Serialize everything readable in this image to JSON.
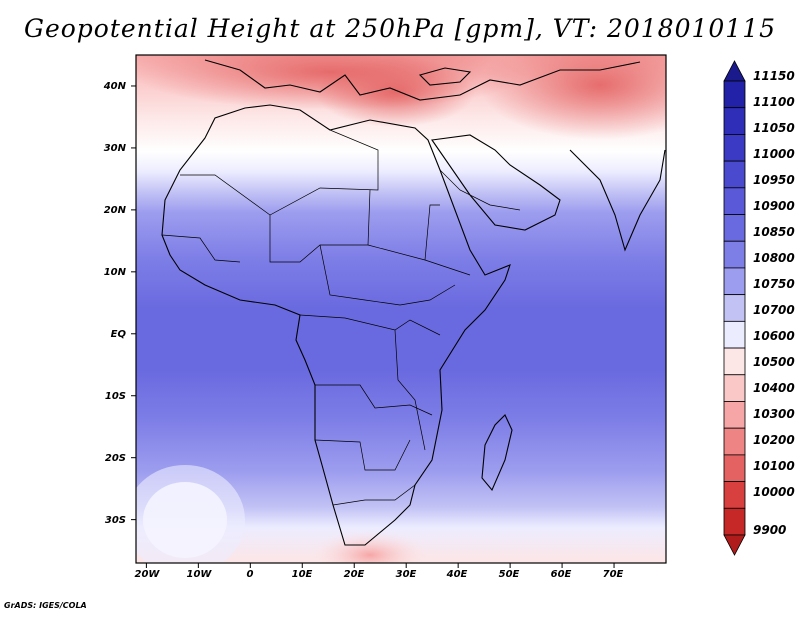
{
  "title": "Geopotential Height at 250hPa [gpm], VT: 2018010115",
  "credit": "GrADS: IGES/COLA",
  "map": {
    "variable": "Geopotential Height",
    "level": "250hPa",
    "units": "gpm",
    "valid_time": "2018010115",
    "lon_range": [
      -22,
      80
    ],
    "lat_range": [
      -37,
      45
    ],
    "lat_labels": [
      "40N",
      "30N",
      "20N",
      "10N",
      "EQ",
      "10S",
      "20S",
      "30S"
    ],
    "lat_values": [
      40,
      30,
      20,
      10,
      0,
      -10,
      -20,
      -30
    ],
    "lon_labels": [
      "20W",
      "10W",
      "0",
      "10E",
      "20E",
      "30E",
      "40E",
      "50E",
      "60E",
      "70E"
    ],
    "lon_values": [
      -20,
      -10,
      0,
      10,
      20,
      30,
      40,
      50,
      60,
      70
    ]
  },
  "colorbar": {
    "levels": [
      "11150",
      "11100",
      "11050",
      "11000",
      "10950",
      "10900",
      "10850",
      "10800",
      "10750",
      "10700",
      "10600",
      "10500",
      "10400",
      "10300",
      "10200",
      "10100",
      "10000",
      "9900"
    ],
    "colors": [
      "#1a1a8c",
      "#2222a8",
      "#2e2eb8",
      "#3a3ac4",
      "#4a4acf",
      "#5a5ad8",
      "#6a6ae0",
      "#7e7ee7",
      "#9d9def",
      "#c2c2f5",
      "#ececff",
      "#fde6e6",
      "#fbc8c8",
      "#f6a6a6",
      "#ee8484",
      "#e46262",
      "#d84040",
      "#c62828",
      "#b01c1c"
    ]
  }
}
